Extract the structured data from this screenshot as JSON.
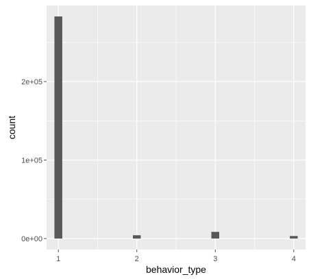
{
  "chart_data": {
    "type": "bar",
    "title": "",
    "xlabel": "behavior_type",
    "ylabel": "count",
    "x": [
      1,
      2,
      3,
      4
    ],
    "values": [
      283000,
      4200,
      8500,
      3200
    ],
    "xlim": [
      0.85,
      4.15
    ],
    "ylim": [
      -14000,
      297000
    ],
    "x_ticks": [
      1,
      2,
      3,
      4
    ],
    "y_ticks": [
      0,
      100000,
      200000
    ],
    "y_tick_labels": [
      "0e+00",
      "1e+05",
      "2e+05"
    ],
    "grid": true,
    "bar_width_units": 0.1,
    "colors": {
      "panel": "#ebebeb",
      "grid_major": "#ffffff",
      "bar": "#595959",
      "tick": "#4d4d4d"
    }
  }
}
